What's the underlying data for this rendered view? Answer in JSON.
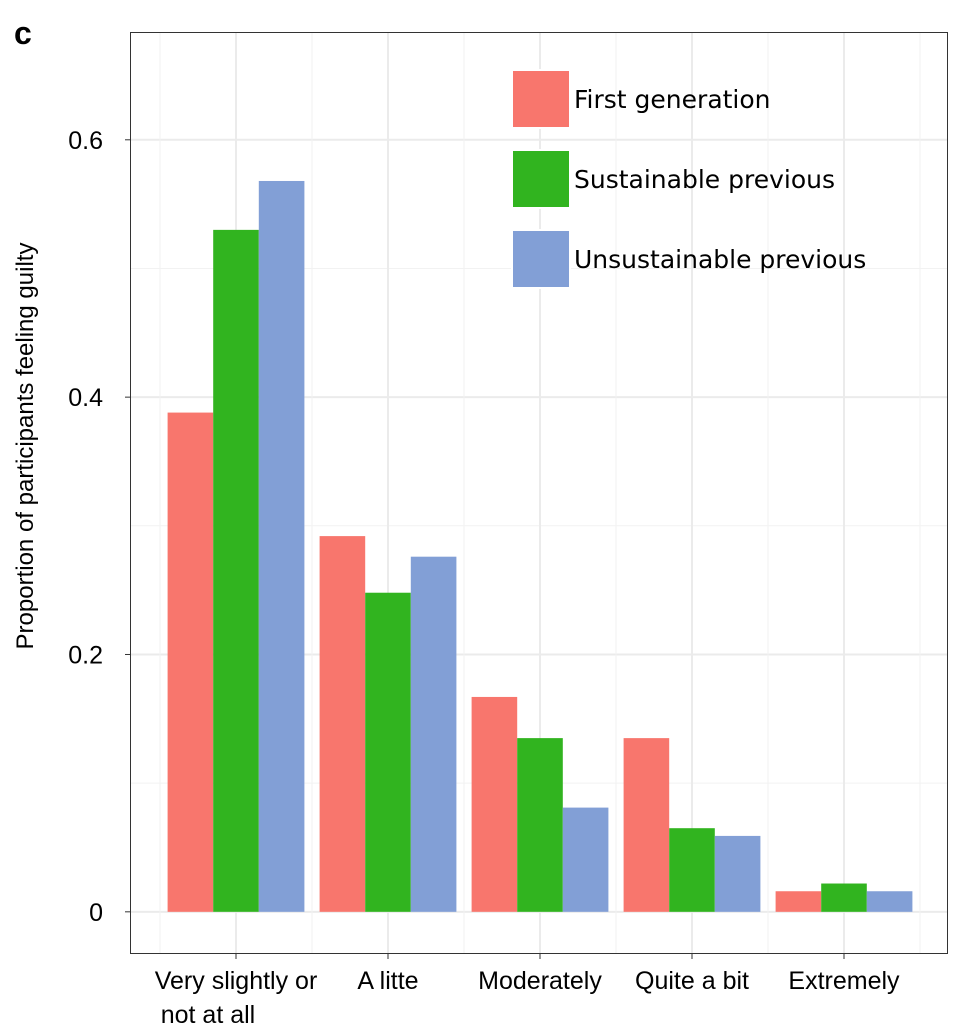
{
  "panel_label": "c",
  "chart_data": {
    "type": "bar",
    "title": "",
    "xlabel": "",
    "ylabel": "Proportion of participants feeling guilty",
    "categories": [
      [
        "Very slightly or",
        "not at all"
      ],
      [
        "A litte"
      ],
      [
        "Moderately"
      ],
      [
        "Quite a bit"
      ],
      [
        "Extremely"
      ]
    ],
    "series": [
      {
        "name": "First generation",
        "color": "#F8766D",
        "values": [
          0.388,
          0.292,
          0.167,
          0.135,
          0.016
        ]
      },
      {
        "name": "Sustainable previous",
        "color": "#31B41F",
        "values": [
          0.53,
          0.248,
          0.135,
          0.065,
          0.022
        ]
      },
      {
        "name": "Unsustainable previous",
        "color": "#829FD6",
        "values": [
          0.568,
          0.276,
          0.081,
          0.059,
          0.016
        ]
      }
    ],
    "ylim": [
      -0.032,
      0.683
    ],
    "yticks": [
      0,
      0.2,
      0.4,
      0.6
    ],
    "ytick_labels": [
      "0",
      "0.2",
      "0.4",
      "0.6"
    ],
    "grid": true,
    "legend_position": "top-right",
    "theme": "bw"
  }
}
